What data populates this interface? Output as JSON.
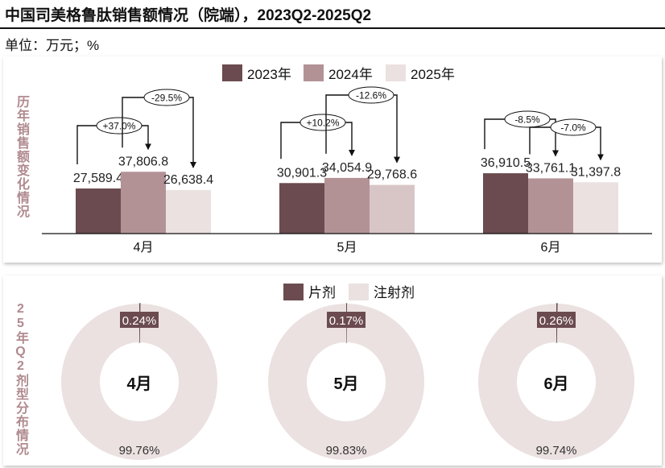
{
  "title": "中国司美格鲁肽销售额情况（院端），2023Q2-2025Q2",
  "unit": "单位：万元；%",
  "top_panel_label": "历年销售额变化情况",
  "bottom_panel_label": "25年Q2剂型分布情况",
  "colors": {
    "y2023": "#6b4b4f",
    "y2024": "#b39296",
    "y2025": "#ebe1e1",
    "tablet": "#6b4b4f",
    "injection": "#ebe1e1"
  },
  "chart_data": [
    {
      "type": "bar",
      "categories": [
        "4月",
        "5月",
        "6月"
      ],
      "series": [
        {
          "name": "2023年",
          "values": [
            27589.4,
            30901.3,
            36910.5
          ]
        },
        {
          "name": "2024年",
          "values": [
            37806.8,
            34054.9,
            33761.1
          ]
        },
        {
          "name": "2025年",
          "values": [
            26638.4,
            29768.6,
            31397.8
          ]
        }
      ],
      "value_labels": [
        [
          "27,589.4",
          "37,806.8",
          "26,638.4"
        ],
        [
          "30,901.3",
          "34,054.9",
          "29,768.6"
        ],
        [
          "36,910.5",
          "33,761.1",
          "31,397.8"
        ]
      ],
      "annotations": [
        {
          "category": "4月",
          "from": "2023年",
          "to": "2024年",
          "text": "+37.0%"
        },
        {
          "category": "4月",
          "from": "2024年",
          "to": "2025年",
          "text": "-29.5%"
        },
        {
          "category": "5月",
          "from": "2023年",
          "to": "2024年",
          "text": "+10.2%"
        },
        {
          "category": "5月",
          "from": "2024年",
          "to": "2025年",
          "text": "-12.6%"
        },
        {
          "category": "6月",
          "from": "2023年",
          "to": "2024年",
          "text": "-8.5%"
        },
        {
          "category": "6月",
          "from": "2024年",
          "to": "2025年",
          "text": "-7.0%"
        }
      ],
      "legend": "top"
    },
    {
      "type": "pie",
      "donut": true,
      "legend": "top",
      "series_names": [
        "片剂",
        "注射剂"
      ],
      "charts": [
        {
          "center_label": "4月",
          "values": [
            0.24,
            99.76
          ],
          "labels": [
            "0.24%",
            "99.76%"
          ]
        },
        {
          "center_label": "5月",
          "values": [
            0.17,
            99.83
          ],
          "labels": [
            "0.17%",
            "99.83%"
          ]
        },
        {
          "center_label": "6月",
          "values": [
            0.26,
            99.74
          ],
          "labels": [
            "0.26%",
            "99.74%"
          ]
        }
      ]
    }
  ]
}
